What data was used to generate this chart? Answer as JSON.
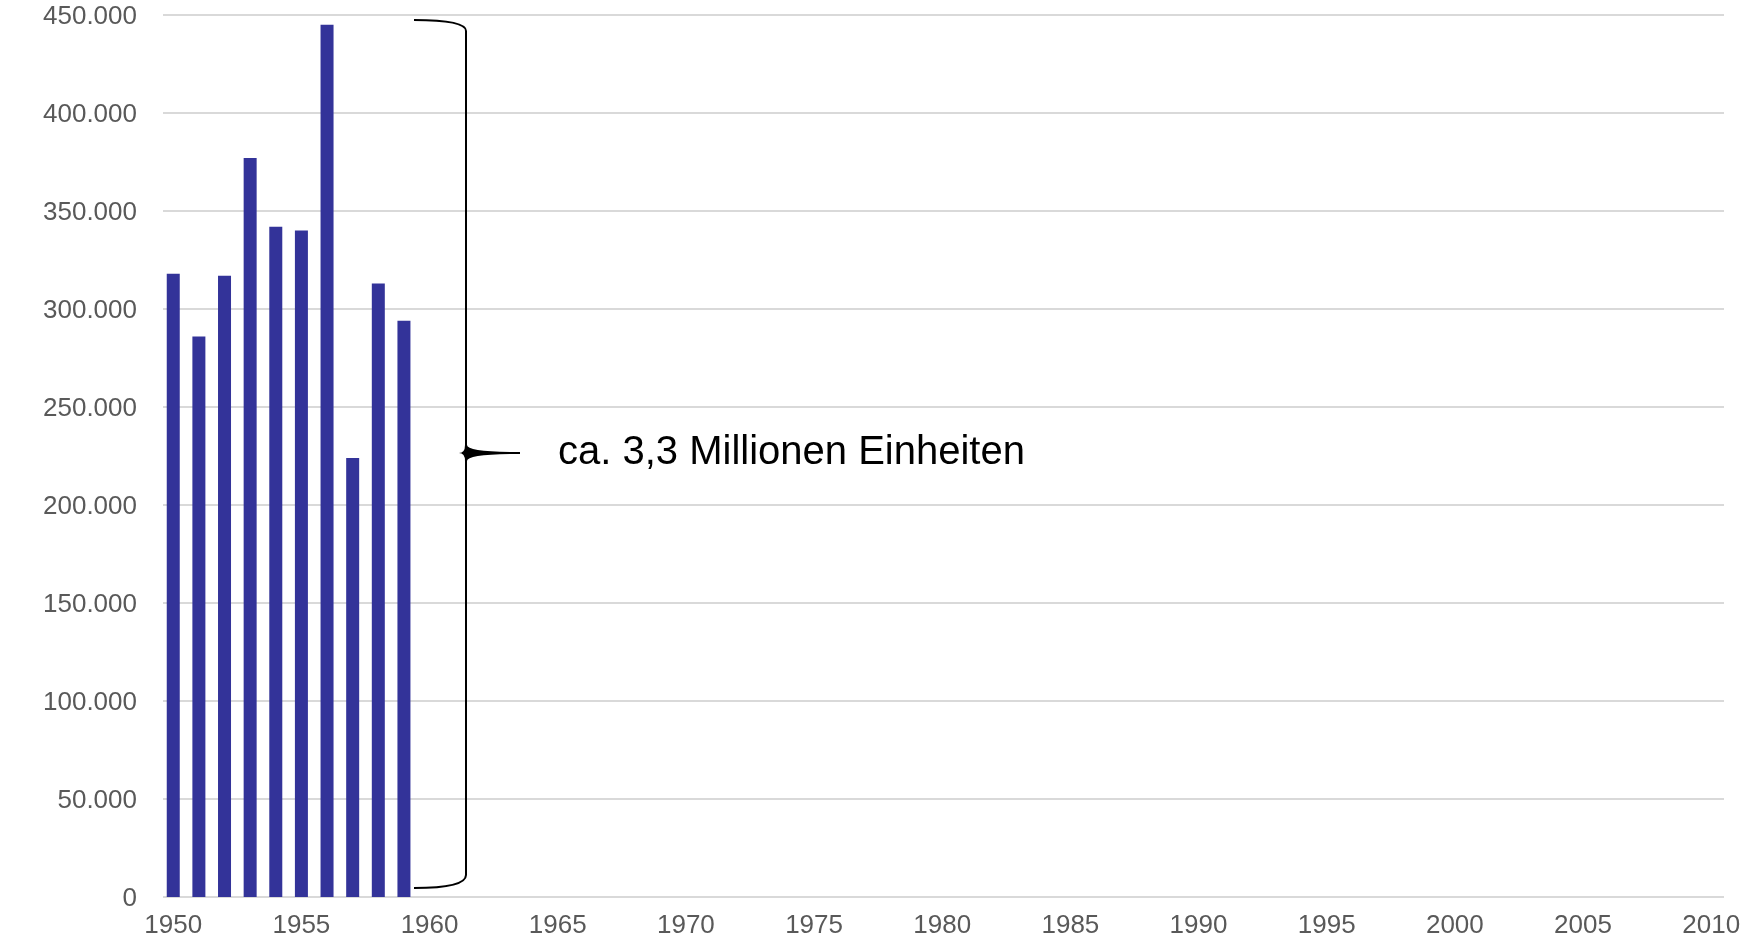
{
  "chart_data": {
    "type": "bar",
    "x": [
      1950,
      1951,
      1952,
      1953,
      1954,
      1955,
      1956,
      1957,
      1958,
      1959,
      1960,
      1961,
      1962,
      1963,
      1964,
      1965,
      1966,
      1967,
      1968,
      1969,
      1970,
      1971,
      1972,
      1973,
      1974,
      1975,
      1976,
      1977,
      1978,
      1979,
      1980,
      1981,
      1982,
      1983,
      1984,
      1985,
      1986,
      1987,
      1988,
      1989,
      1990,
      1991,
      1992,
      1993,
      1994,
      1995,
      1996,
      1997,
      1998,
      1999,
      2000,
      2001,
      2002,
      2003,
      2004,
      2005,
      2006,
      2007,
      2008,
      2009,
      2010
    ],
    "values": [
      318000,
      286000,
      317000,
      377000,
      342000,
      340000,
      445000,
      224000,
      313000,
      294000,
      0,
      0,
      0,
      0,
      0,
      0,
      0,
      0,
      0,
      0,
      0,
      0,
      0,
      0,
      0,
      0,
      0,
      0,
      0,
      0,
      0,
      0,
      0,
      0,
      0,
      0,
      0,
      0,
      0,
      0,
      0,
      0,
      0,
      0,
      0,
      0,
      0,
      0,
      0,
      0,
      0,
      0,
      0,
      0,
      0,
      0,
      0,
      0,
      0,
      0,
      0
    ],
    "color": "#333399",
    "xlim": [
      1949.6,
      2010.5
    ],
    "xticks": [
      1950,
      1955,
      1960,
      1965,
      1970,
      1975,
      1980,
      1985,
      1990,
      1995,
      2000,
      2005,
      2010
    ],
    "ylim": [
      0,
      450000
    ],
    "yticks": [
      0,
      {
        "value": 50000,
        "label": "50.000"
      },
      {
        "value": 100000,
        "label": "100.000"
      },
      {
        "value": 150000,
        "label": "150.000"
      },
      {
        "value": 200000,
        "label": "200.000"
      },
      {
        "value": 250000,
        "label": "250.000"
      },
      {
        "value": 300000,
        "label": "300.000"
      },
      {
        "value": 350000,
        "label": "350.000"
      },
      {
        "value": 400000,
        "label": "400.000"
      },
      {
        "value": 450000,
        "label": "450.000"
      }
    ],
    "grid": "y",
    "annotations": [
      "ca. 3,3 Millionen Einheiten"
    ]
  }
}
